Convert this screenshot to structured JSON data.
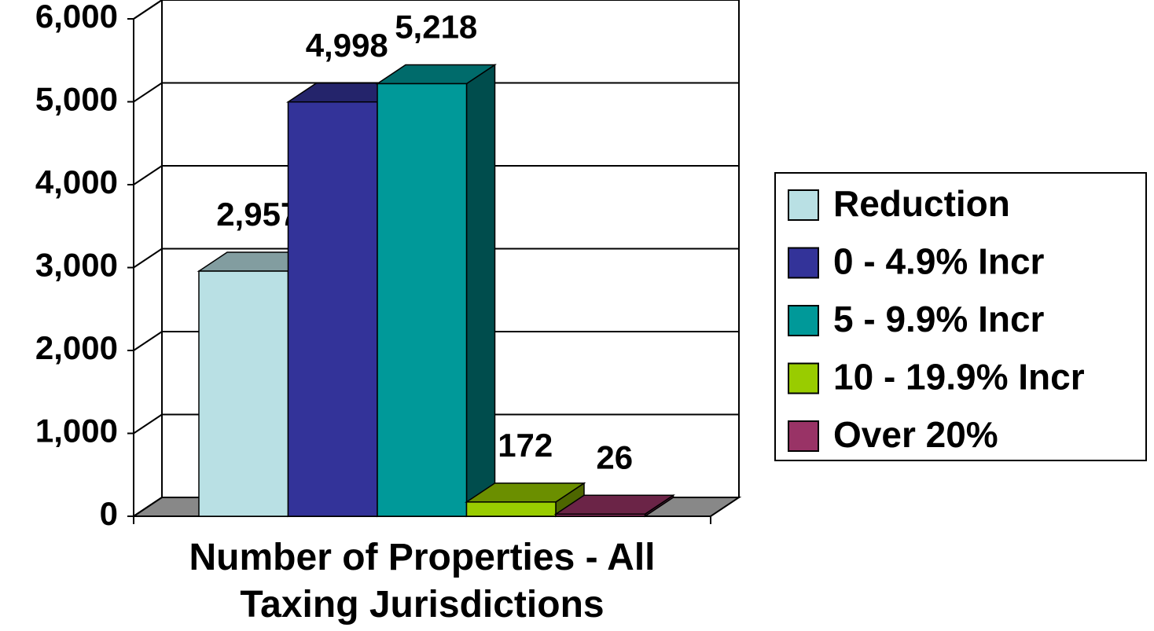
{
  "chart_data": {
    "type": "bar3d",
    "categories": [
      "Number of Properties - All Taxing Jurisdictions"
    ],
    "series": [
      {
        "name": "Reduction",
        "color": "#b9e0e4",
        "values": [
          2957
        ],
        "value_labels": [
          "2,957"
        ]
      },
      {
        "name": "0 - 4.9% Incr",
        "color": "#333399",
        "values": [
          4998
        ],
        "value_labels": [
          "4,998"
        ]
      },
      {
        "name": "5 - 9.9% Incr",
        "color": "#009999",
        "values": [
          5218
        ],
        "value_labels": [
          "5,218"
        ]
      },
      {
        "name": "10 - 19.9% Incr",
        "color": "#99cc00",
        "values": [
          172
        ],
        "value_labels": [
          "172"
        ]
      },
      {
        "name": "Over 20%",
        "color": "#993366",
        "values": [
          26
        ],
        "value_labels": [
          "26"
        ]
      }
    ],
    "ylim": [
      0,
      6000
    ],
    "yticks": [
      {
        "value": 0,
        "label": "0"
      },
      {
        "value": 1000,
        "label": "1,000"
      },
      {
        "value": 2000,
        "label": "2,000"
      },
      {
        "value": 3000,
        "label": "3,000"
      },
      {
        "value": 4000,
        "label": "4,000"
      },
      {
        "value": 5000,
        "label": "5,000"
      },
      {
        "value": 6000,
        "label": "6,000"
      }
    ],
    "grid": true,
    "legend": "right"
  }
}
